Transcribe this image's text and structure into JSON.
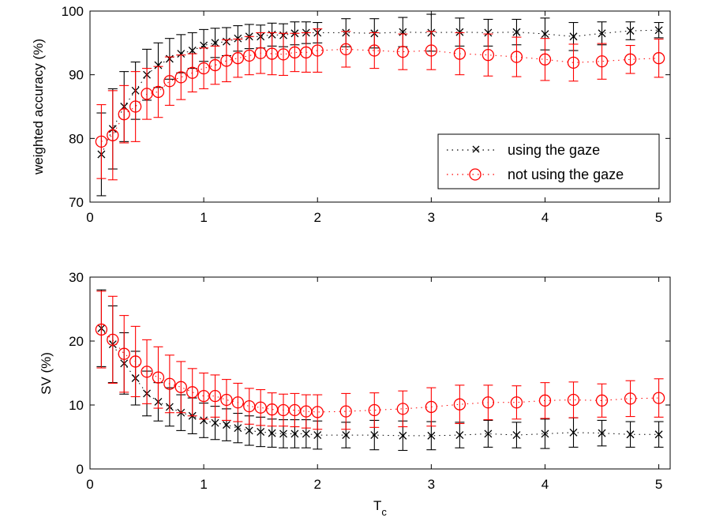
{
  "chart_data": [
    {
      "type": "scatter",
      "title": "",
      "xlabel": "",
      "ylabel": "weighted accuracy (%)",
      "xlim": [
        0,
        5.1
      ],
      "ylim": [
        70,
        100
      ],
      "xticks": [
        "0",
        "1",
        "2",
        "3",
        "4",
        "5"
      ],
      "yticks": [
        "70",
        "80",
        "90",
        "100"
      ],
      "legend_position": "lower-right",
      "x": [
        0.1,
        0.2,
        0.3,
        0.4,
        0.5,
        0.6,
        0.7,
        0.8,
        0.9,
        1.0,
        1.1,
        1.2,
        1.3,
        1.4,
        1.5,
        1.6,
        1.7,
        1.8,
        1.9,
        2.0,
        2.25,
        2.5,
        2.75,
        3.0,
        3.25,
        3.5,
        3.75,
        4.0,
        4.25,
        4.5,
        4.75,
        5.0
      ],
      "series": [
        {
          "name": "using the gaze",
          "color": "#000000",
          "marker": "x",
          "values": [
            77.5,
            81.5,
            85.0,
            87.5,
            90.0,
            91.5,
            92.5,
            93.3,
            93.8,
            94.6,
            95.0,
            95.2,
            95.7,
            96.0,
            96.0,
            96.3,
            96.2,
            96.5,
            96.6,
            96.6,
            96.6,
            96.5,
            96.7,
            96.6,
            96.7,
            96.6,
            96.7,
            96.4,
            96.0,
            96.5,
            96.9,
            97.0
          ],
          "errors": [
            6.5,
            6.3,
            5.5,
            4.5,
            4.0,
            3.5,
            3.2,
            3.0,
            2.8,
            2.5,
            2.3,
            2.2,
            2.0,
            1.9,
            1.8,
            1.8,
            1.8,
            1.8,
            1.7,
            1.6,
            2.2,
            2.3,
            2.3,
            2.9,
            2.2,
            2.1,
            2.0,
            2.5,
            2.2,
            1.8,
            1.4,
            1.2
          ]
        },
        {
          "name": "not using the gaze",
          "color": "#ff0000",
          "marker": "o",
          "values": [
            79.5,
            80.5,
            83.8,
            85.0,
            87.0,
            87.3,
            89.0,
            89.6,
            90.3,
            91.0,
            91.5,
            92.2,
            92.6,
            93.0,
            93.4,
            93.3,
            93.2,
            93.5,
            93.5,
            93.8,
            94.0,
            93.8,
            93.6,
            93.8,
            93.3,
            93.1,
            92.8,
            92.4,
            91.9,
            92.1,
            92.4,
            92.6
          ]
        }
      ],
      "red_errors": [
        5.8,
        7.0,
        4.5,
        5.5,
        4.0,
        4.0,
        3.8,
        3.5,
        3.0,
        3.2,
        3.0,
        3.3,
        3.0,
        3.0,
        3.2,
        3.3,
        3.3,
        3.0,
        3.1,
        3.4,
        2.8,
        2.8,
        2.8,
        3.0,
        3.3,
        3.3,
        3.1,
        3.3,
        2.9,
        2.8,
        2.2,
        3.0
      ]
    },
    {
      "type": "scatter",
      "title": "",
      "xlabel": "T",
      "xlabel_sub": "c",
      "ylabel": "SV (%)",
      "xlim": [
        0,
        5.1
      ],
      "ylim": [
        0,
        30
      ],
      "xticks": [
        "0",
        "1",
        "2",
        "3",
        "4",
        "5"
      ],
      "yticks": [
        "0",
        "10",
        "20",
        "30"
      ],
      "x": [
        0.1,
        0.2,
        0.3,
        0.4,
        0.5,
        0.6,
        0.7,
        0.8,
        0.9,
        1.0,
        1.1,
        1.2,
        1.3,
        1.4,
        1.5,
        1.6,
        1.7,
        1.8,
        1.9,
        2.0,
        2.25,
        2.5,
        2.75,
        3.0,
        3.25,
        3.5,
        3.75,
        4.0,
        4.25,
        4.5,
        4.75,
        5.0
      ],
      "series": [
        {
          "name": "using the gaze",
          "color": "#000000",
          "marker": "x",
          "values": [
            22.0,
            19.5,
            16.5,
            14.2,
            11.8,
            10.5,
            9.7,
            8.8,
            8.3,
            7.6,
            7.2,
            6.9,
            6.4,
            6.0,
            5.8,
            5.6,
            5.5,
            5.5,
            5.5,
            5.3,
            5.3,
            5.3,
            5.2,
            5.2,
            5.3,
            5.5,
            5.3,
            5.5,
            5.7,
            5.6,
            5.4,
            5.4
          ],
          "errors": [
            6.0,
            6.0,
            4.8,
            4.2,
            3.5,
            3.0,
            3.0,
            2.8,
            2.8,
            2.7,
            2.6,
            2.5,
            2.3,
            2.3,
            2.3,
            2.2,
            2.2,
            2.2,
            2.2,
            2.2,
            2.0,
            2.3,
            2.3,
            2.2,
            2.0,
            2.1,
            2.0,
            2.3,
            2.3,
            2.0,
            2.0,
            2.0
          ]
        },
        {
          "name": "not using the gaze",
          "color": "#ff0000",
          "marker": "o",
          "values": [
            21.8,
            20.2,
            18.0,
            16.8,
            15.2,
            14.3,
            13.3,
            12.8,
            12.0,
            11.4,
            11.4,
            10.8,
            10.4,
            9.8,
            9.6,
            9.3,
            9.2,
            9.2,
            9.0,
            8.9,
            9.0,
            9.2,
            9.4,
            9.7,
            10.1,
            10.4,
            10.4,
            10.7,
            10.8,
            10.7,
            11.0,
            11.1
          ],
          "errors": [
            6.0,
            6.8,
            6.0,
            5.5,
            5.0,
            4.8,
            4.5,
            4.0,
            3.7,
            3.6,
            3.3,
            3.2,
            3.0,
            2.8,
            2.8,
            2.6,
            2.5,
            2.6,
            2.6,
            2.7,
            2.8,
            2.7,
            2.8,
            3.0,
            3.0,
            2.7,
            2.6,
            2.8,
            2.8,
            2.6,
            2.8,
            3.0
          ]
        }
      ]
    }
  ]
}
